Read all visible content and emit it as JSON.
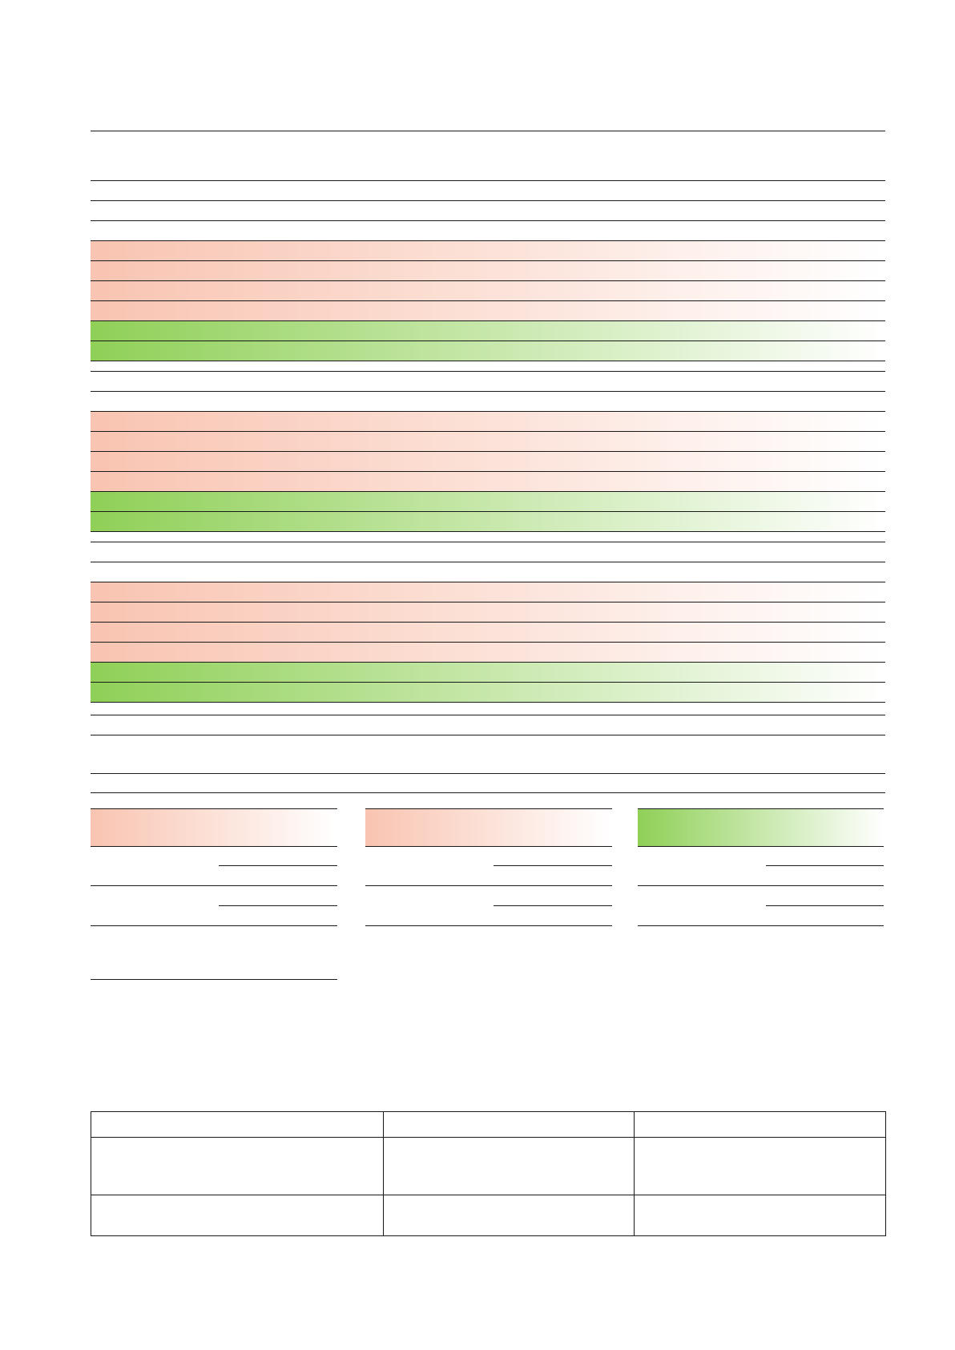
{
  "colors": {
    "red_band": "#f9c4b1",
    "green_band": "#8fd057",
    "rule": "#1a1a1a",
    "background": "#ffffff"
  },
  "main_table": {
    "groups": [
      {
        "rows": [
          "neutral",
          "neutral",
          "red",
          "red",
          "red",
          "red",
          "green",
          "green"
        ]
      },
      {
        "rows": [
          "neutral",
          "neutral",
          "red",
          "red",
          "red",
          "red",
          "green",
          "green"
        ]
      },
      {
        "rows": [
          "neutral",
          "neutral",
          "red",
          "red",
          "red",
          "red",
          "green",
          "green"
        ]
      }
    ]
  },
  "summary_blocks": [
    {
      "header_color": "red"
    },
    {
      "header_color": "red"
    },
    {
      "header_color": "green"
    }
  ],
  "bottom_table": {
    "columns": 3,
    "rows": 3
  }
}
